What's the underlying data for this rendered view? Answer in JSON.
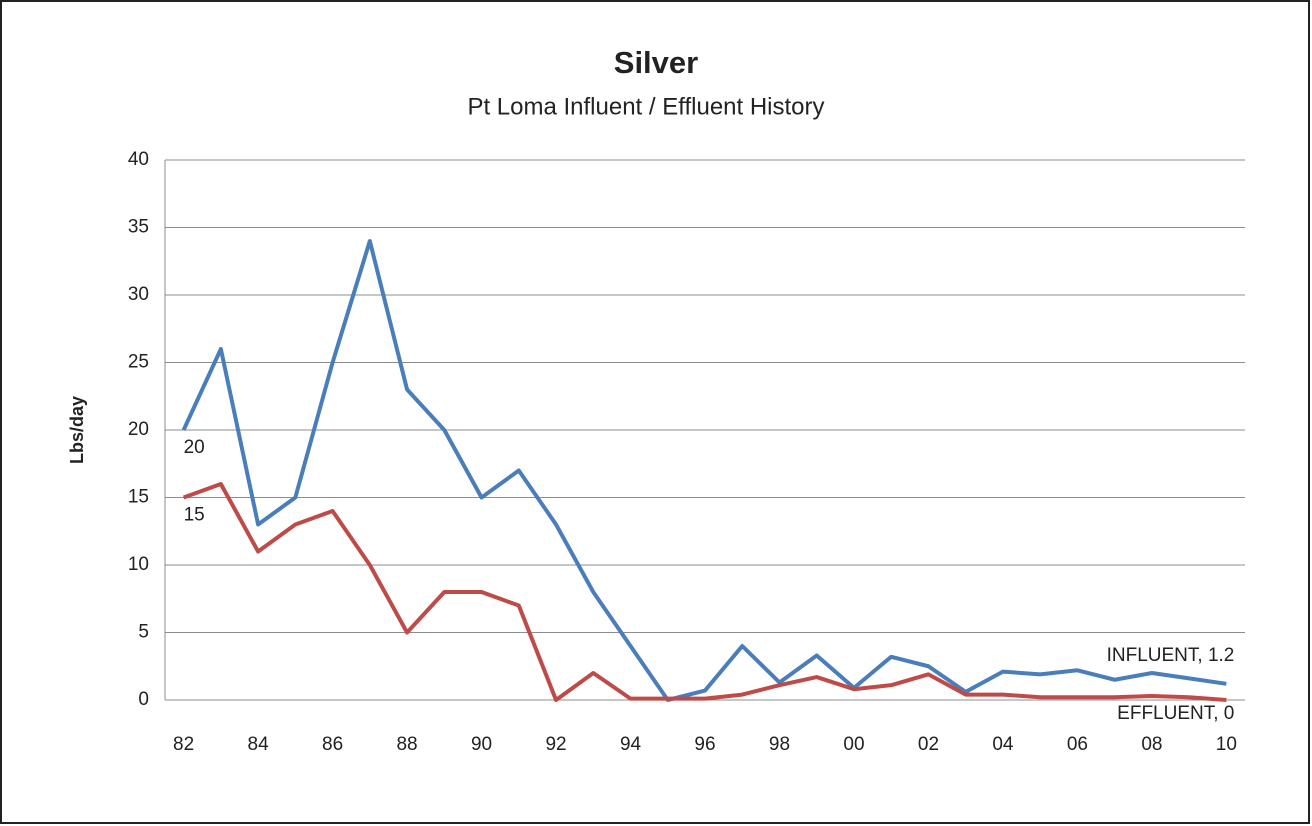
{
  "chart_data": {
    "type": "line",
    "title": "Silver",
    "subtitle": "Pt Loma Influent / Effluent History",
    "y_label": "Lbs/day",
    "categories": [
      "82",
      null,
      "84",
      null,
      "86",
      null,
      "88",
      null,
      "90",
      null,
      "92",
      null,
      "94",
      null,
      "96",
      null,
      "98",
      null,
      "00",
      null,
      "02",
      null,
      "04",
      null,
      "06",
      null,
      "08",
      null,
      "10"
    ],
    "series": [
      {
        "name": "INFLUENT",
        "color": "#4a7ebb",
        "values": [
          20,
          26,
          13,
          15,
          25,
          34,
          23,
          20,
          15,
          17,
          13,
          8,
          4,
          0,
          0.7,
          4,
          1.3,
          3.3,
          0.9,
          3.2,
          2.5,
          0.6,
          2.1,
          1.9,
          2.2,
          1.5,
          2.0,
          1.6,
          1.2
        ],
        "value_labels": [
          "20",
          null,
          null,
          null,
          null,
          null,
          null,
          null,
          null,
          null,
          null,
          null,
          null,
          null,
          null,
          null,
          null,
          null,
          null,
          null,
          null,
          null,
          null,
          null,
          null,
          null,
          null,
          null,
          "INFLUENT, 1.2"
        ]
      },
      {
        "name": "EFFLUENT",
        "color": "#be4b48",
        "values": [
          15,
          16,
          11,
          13,
          14,
          10,
          5,
          8,
          8,
          7,
          0,
          2,
          0.1,
          0.1,
          0.1,
          0.4,
          1.1,
          1.7,
          0.8,
          1.1,
          1.9,
          0.4,
          0.4,
          0.2,
          0.2,
          0.2,
          0.3,
          0.2,
          0
        ],
        "value_labels": [
          "15",
          null,
          null,
          null,
          null,
          null,
          null,
          null,
          null,
          null,
          null,
          null,
          null,
          null,
          null,
          null,
          null,
          null,
          null,
          null,
          null,
          null,
          null,
          null,
          null,
          null,
          null,
          null,
          "EFFLUENT, 0"
        ]
      }
    ],
    "ylim": [
      0,
      40
    ],
    "yticks": [
      0,
      5,
      10,
      15,
      20,
      25,
      30,
      35,
      40
    ],
    "grid": true
  }
}
